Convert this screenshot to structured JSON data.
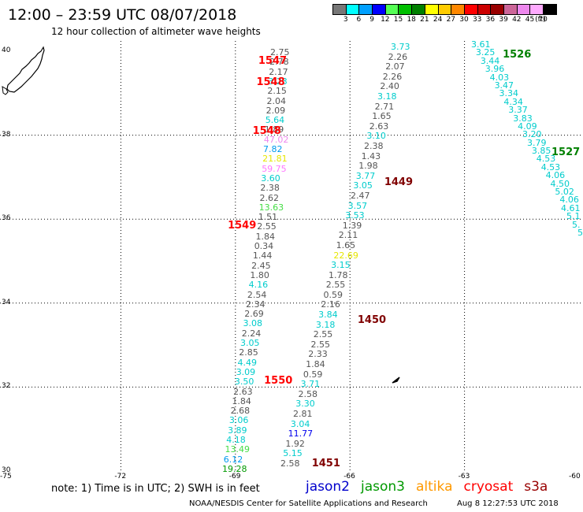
{
  "header": {
    "title": "12:00  –  23:59 UTC 08/07/2018",
    "subtitle": "12 hour collection of altimeter wave heights"
  },
  "legend": {
    "unit": "(ft)",
    "bins": [
      {
        "label": "3",
        "color": "#777777"
      },
      {
        "label": "6",
        "color": "#00ffff"
      },
      {
        "label": "9",
        "color": "#00a0ff"
      },
      {
        "label": "12",
        "color": "#0000ff"
      },
      {
        "label": "15",
        "color": "#55ff55"
      },
      {
        "label": "18",
        "color": "#00c000"
      },
      {
        "label": "21",
        "color": "#008000"
      },
      {
        "label": "24",
        "color": "#ffff00"
      },
      {
        "label": "27",
        "color": "#ffcc00"
      },
      {
        "label": "30",
        "color": "#ff8800"
      },
      {
        "label": "33",
        "color": "#ff0000"
      },
      {
        "label": "36",
        "color": "#cc0000"
      },
      {
        "label": "39",
        "color": "#990000"
      },
      {
        "label": "42",
        "color": "#cc6699"
      },
      {
        "label": "45",
        "color": "#ee88ee"
      },
      {
        "label": "70",
        "color": "#ffaaff"
      },
      {
        "label": "",
        "color": "#000000"
      }
    ]
  },
  "axes": {
    "lat_ticks": [
      "40",
      "38",
      "36",
      "34",
      "32",
      "30"
    ],
    "lon_ticks": [
      "-75",
      "-72",
      "-69",
      "-66",
      "-63",
      "-60"
    ],
    "lat_range": [
      30,
      40
    ],
    "lon_range": [
      -75,
      -60
    ]
  },
  "pass_labels": [
    {
      "text": "1547",
      "color": "#ff0000",
      "lon": -68.4,
      "lat": 39.78
    },
    {
      "text": "1548",
      "color": "#ff0000",
      "lon": -68.45,
      "lat": 39.26
    },
    {
      "text": "1548",
      "color": "#ff0000",
      "lon": -68.55,
      "lat": 38.1
    },
    {
      "text": "1449",
      "color": "#800000",
      "lon": -65.1,
      "lat": 36.88
    },
    {
      "text": "1549",
      "color": "#ff0000",
      "lon": -69.2,
      "lat": 35.85
    },
    {
      "text": "1450",
      "color": "#800000",
      "lon": -65.8,
      "lat": 33.6
    },
    {
      "text": "1550",
      "color": "#ff0000",
      "lon": -68.25,
      "lat": 32.15
    },
    {
      "text": "1451",
      "color": "#800000",
      "lon": -67.0,
      "lat": 30.18
    },
    {
      "text": "1526",
      "color": "#008000",
      "lon": -62.0,
      "lat": 39.92
    },
    {
      "text": "1527",
      "color": "#008000",
      "lon": -60.5,
      "lat": 37.6
    }
  ],
  "tracks": [
    {
      "name": "t1",
      "points": [
        {
          "v": "2.75",
          "c": "#555555"
        },
        {
          "v": "2.78",
          "c": "#555555"
        },
        {
          "v": "2.17",
          "c": "#555555"
        },
        {
          "v": "3.23",
          "c": "#00cccc"
        },
        {
          "v": "2.15",
          "c": "#555555"
        },
        {
          "v": "2.04",
          "c": "#555555"
        },
        {
          "v": "2.09",
          "c": "#555555"
        },
        {
          "v": "5.64",
          "c": "#00cccc"
        },
        {
          "v": "1.89",
          "c": "#555555"
        },
        {
          "v": "47.02",
          "c": "#ee88ee"
        },
        {
          "v": "7.82",
          "c": "#0099ee"
        },
        {
          "v": "21.81",
          "c": "#e6e600"
        },
        {
          "v": "59.75",
          "c": "#ff77ff"
        },
        {
          "v": "3.60",
          "c": "#00cccc"
        },
        {
          "v": "2.38",
          "c": "#555555"
        },
        {
          "v": "2.62",
          "c": "#555555"
        },
        {
          "v": "13.63",
          "c": "#44dd44"
        },
        {
          "v": "1.51",
          "c": "#555555"
        },
        {
          "v": "2.55",
          "c": "#555555"
        },
        {
          "v": "1.84",
          "c": "#555555"
        },
        {
          "v": "0.34",
          "c": "#555555"
        },
        {
          "v": "1.44",
          "c": "#555555"
        },
        {
          "v": "2.45",
          "c": "#555555"
        },
        {
          "v": "1.80",
          "c": "#555555"
        },
        {
          "v": "4.16",
          "c": "#00cccc"
        },
        {
          "v": "2.54",
          "c": "#555555"
        },
        {
          "v": "2.34",
          "c": "#555555"
        },
        {
          "v": "2.69",
          "c": "#555555"
        },
        {
          "v": "3.08",
          "c": "#00cccc"
        },
        {
          "v": "2.24",
          "c": "#555555"
        },
        {
          "v": "3.05",
          "c": "#00cccc"
        },
        {
          "v": "2.85",
          "c": "#555555"
        },
        {
          "v": "4.49",
          "c": "#00cccc"
        },
        {
          "v": "3.09",
          "c": "#00cccc"
        },
        {
          "v": "3.50",
          "c": "#00cccc"
        },
        {
          "v": "2.63",
          "c": "#555555"
        },
        {
          "v": "1.84",
          "c": "#555555"
        },
        {
          "v": "2.68",
          "c": "#555555"
        },
        {
          "v": "3.06",
          "c": "#00cccc"
        },
        {
          "v": "3.89",
          "c": "#00cccc"
        },
        {
          "v": "4.18",
          "c": "#00cccc"
        },
        {
          "v": "13.49",
          "c": "#44dd44"
        },
        {
          "v": "6.12",
          "c": "#0099ee"
        },
        {
          "v": "19.28",
          "c": "#009900"
        }
      ]
    },
    {
      "name": "t2",
      "points": [
        {
          "v": "3.73",
          "c": "#00cccc"
        },
        {
          "v": "2.26",
          "c": "#555555"
        },
        {
          "v": "2.07",
          "c": "#555555"
        },
        {
          "v": "2.26",
          "c": "#555555"
        },
        {
          "v": "2.40",
          "c": "#555555"
        },
        {
          "v": "3.18",
          "c": "#00cccc"
        },
        {
          "v": "2.71",
          "c": "#555555"
        },
        {
          "v": "1.65",
          "c": "#555555"
        },
        {
          "v": "2.63",
          "c": "#555555"
        },
        {
          "v": "3.10",
          "c": "#00cccc"
        },
        {
          "v": "2.38",
          "c": "#555555"
        },
        {
          "v": "1.43",
          "c": "#555555"
        },
        {
          "v": "1.98",
          "c": "#555555"
        },
        {
          "v": "3.77",
          "c": "#00cccc"
        },
        {
          "v": "3.05",
          "c": "#00cccc"
        },
        {
          "v": "2.47",
          "c": "#555555"
        },
        {
          "v": "3.57",
          "c": "#00cccc"
        },
        {
          "v": "3.53",
          "c": "#00cccc"
        },
        {
          "v": "1.39",
          "c": "#555555"
        },
        {
          "v": "2.11",
          "c": "#555555"
        },
        {
          "v": "1.65",
          "c": "#555555"
        },
        {
          "v": "22.69",
          "c": "#e6e600"
        },
        {
          "v": "3.15",
          "c": "#00cccc"
        },
        {
          "v": "1.78",
          "c": "#555555"
        },
        {
          "v": "2.55",
          "c": "#555555"
        },
        {
          "v": "0.59",
          "c": "#555555"
        },
        {
          "v": "2.16",
          "c": "#555555"
        },
        {
          "v": "3.84",
          "c": "#00cccc"
        },
        {
          "v": "3.18",
          "c": "#00cccc"
        },
        {
          "v": "2.55",
          "c": "#555555"
        },
        {
          "v": "2.55",
          "c": "#555555"
        },
        {
          "v": "2.33",
          "c": "#555555"
        },
        {
          "v": "1.84",
          "c": "#555555"
        },
        {
          "v": "0.59",
          "c": "#555555"
        },
        {
          "v": "3.71",
          "c": "#00cccc"
        },
        {
          "v": "2.58",
          "c": "#555555"
        },
        {
          "v": "3.30",
          "c": "#00cccc"
        },
        {
          "v": "2.81",
          "c": "#555555"
        },
        {
          "v": "3.04",
          "c": "#00cccc"
        },
        {
          "v": "11.77",
          "c": "#0000ee"
        },
        {
          "v": "1.92",
          "c": "#555555"
        },
        {
          "v": "5.15",
          "c": "#00cccc"
        },
        {
          "v": "2.58",
          "c": "#555555"
        }
      ]
    },
    {
      "name": "t3",
      "points": [
        {
          "v": "3.61",
          "c": "#00cccc"
        },
        {
          "v": "3.25",
          "c": "#00cccc"
        },
        {
          "v": "3.44",
          "c": "#00cccc"
        },
        {
          "v": "3.96",
          "c": "#00cccc"
        },
        {
          "v": "4.03",
          "c": "#00cccc"
        },
        {
          "v": "3.47",
          "c": "#00cccc"
        },
        {
          "v": "3.34",
          "c": "#00cccc"
        },
        {
          "v": "4.34",
          "c": "#00cccc"
        },
        {
          "v": "3.37",
          "c": "#00cccc"
        },
        {
          "v": "3.83",
          "c": "#00cccc"
        },
        {
          "v": "4.09",
          "c": "#00cccc"
        },
        {
          "v": "3.20",
          "c": "#00cccc"
        },
        {
          "v": "3.79",
          "c": "#00cccc"
        },
        {
          "v": "3.85",
          "c": "#00cccc"
        },
        {
          "v": "4.53",
          "c": "#00cccc"
        },
        {
          "v": "4.53",
          "c": "#00cccc"
        },
        {
          "v": "4.06",
          "c": "#00cccc"
        },
        {
          "v": "4.50",
          "c": "#00cccc"
        },
        {
          "v": "5.02",
          "c": "#00cccc"
        },
        {
          "v": "4.06",
          "c": "#00cccc"
        },
        {
          "v": "4.61",
          "c": "#00cccc"
        },
        {
          "v": "5.1",
          "c": "#00cccc"
        },
        {
          "v": "5.",
          "c": "#00cccc"
        },
        {
          "v": "5",
          "c": "#00cccc"
        }
      ]
    }
  ],
  "footer": {
    "note": "note:  1) Time is in UTC;  2) SWH is in feet",
    "satellites": [
      {
        "name": "jason2",
        "color": "#0000cc"
      },
      {
        "name": "jason3",
        "color": "#009900"
      },
      {
        "name": "altika",
        "color": "#ff9900"
      },
      {
        "name": "cryosat",
        "color": "#ff0000"
      },
      {
        "name": "s3a",
        "color": "#990000"
      }
    ],
    "credit": "NOAA/NESDIS Center for Satellite Applications and Research",
    "generated": "Aug  8 12:27:53 UTC 2018"
  }
}
